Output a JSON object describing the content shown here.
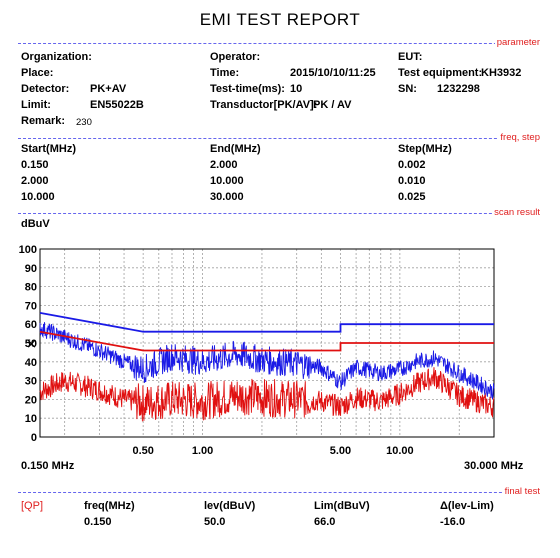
{
  "report_title": "EMI TEST REPORT",
  "sections": {
    "parameter": "parameter",
    "freq_step": "freq, step",
    "scan_result": "scan result",
    "final_test": "final test"
  },
  "parameters": {
    "organization_label": "Organization:",
    "organization_value": "",
    "place_label": "Place:",
    "place_value": "",
    "detector_label": "Detector:",
    "detector_value": "PK+AV",
    "limit_label": "Limit:",
    "limit_value": "EN55022B",
    "remark_label": "Remark:",
    "remark_value": "230",
    "operator_label": "Operator:",
    "operator_value": "",
    "time_label": "Time:",
    "time_value": "2015/10/10/11:25",
    "test_time_label": "Test-time(ms):",
    "test_time_value": "10",
    "transducer_label": "Transductor[PK/AV]:",
    "transducer_value": "PK  /  AV",
    "eut_label": "EUT:",
    "eut_value": "",
    "equipment_label": "Test equipment:",
    "equipment_value": "KH3932",
    "sn_label": "SN:",
    "sn_value": "1232298"
  },
  "freq_step": {
    "headers": [
      "Start(MHz)",
      "End(MHz)",
      "Step(MHz)"
    ],
    "rows": [
      [
        "0.150",
        "2.000",
        "0.002"
      ],
      [
        "2.000",
        "10.000",
        "0.010"
      ],
      [
        "10.000",
        "30.000",
        "0.025"
      ]
    ]
  },
  "chart_data": {
    "type": "line",
    "ylabel": "dBuV",
    "ylim": [
      0,
      100
    ],
    "xlim": [
      0.15,
      30
    ],
    "x_scale": "log",
    "y_ticks": [
      "100",
      "90",
      "80",
      "70",
      "60",
      "50",
      "40",
      "30",
      "20",
      "10",
      "0"
    ],
    "x_tick_labels": [
      "0.50",
      "1.00",
      "5.00",
      "10.00"
    ],
    "x_tick_values": [
      0.5,
      1,
      5,
      10
    ],
    "x_start_label": "0.150 MHz",
    "x_end_label": "30.000 MHz",
    "grid": true,
    "colors": {
      "upper_limit": "#1a1ae6",
      "lower_limit": "#e01010",
      "peak_trace": "#1a1ae6",
      "avg_trace": "#e01010",
      "grid": "#a0a0a0"
    },
    "series": [
      {
        "x": [
          0.15,
          0.5,
          5,
          5,
          30
        ],
        "y": [
          66,
          56,
          56,
          60,
          60
        ]
      },
      {
        "x": [
          0.15,
          0.5,
          5,
          5,
          30
        ],
        "y": [
          56,
          46,
          46,
          50,
          50
        ]
      },
      {
        "x": [
          0.15,
          0.2,
          0.3,
          0.4,
          0.5,
          0.7,
          1.0,
          1.5,
          2.0,
          3.0,
          4.0,
          5.0,
          6.0,
          8.0,
          10.0,
          12.0,
          15.0,
          20.0,
          30.0
        ],
        "y": [
          58,
          53,
          46,
          40,
          36,
          43,
          40,
          44,
          41,
          39,
          37,
          29,
          37,
          34,
          36,
          40,
          42,
          34,
          24
        ]
      },
      {
        "x": [
          0.15,
          0.2,
          0.3,
          0.4,
          0.5,
          0.7,
          1.0,
          1.5,
          2.0,
          3.0,
          4.0,
          5.0,
          6.0,
          8.0,
          10.0,
          12.0,
          15.0,
          20.0,
          30.0
        ],
        "y": [
          24,
          30,
          25,
          20,
          18,
          20,
          19,
          22,
          21,
          20,
          19,
          16,
          21,
          19,
          23,
          28,
          32,
          22,
          16
        ]
      }
    ],
    "marker": {
      "x": 0.15,
      "y": 50.0,
      "symbol": "×"
    }
  },
  "final_test": {
    "detector_tag": "[QP]",
    "headers": [
      "freq(MHz)",
      "lev(dBuV)",
      "Lim(dBuV)",
      "Δ(lev-Lim)"
    ],
    "values": [
      "0.150",
      "50.0",
      "66.0",
      "-16.0"
    ]
  }
}
